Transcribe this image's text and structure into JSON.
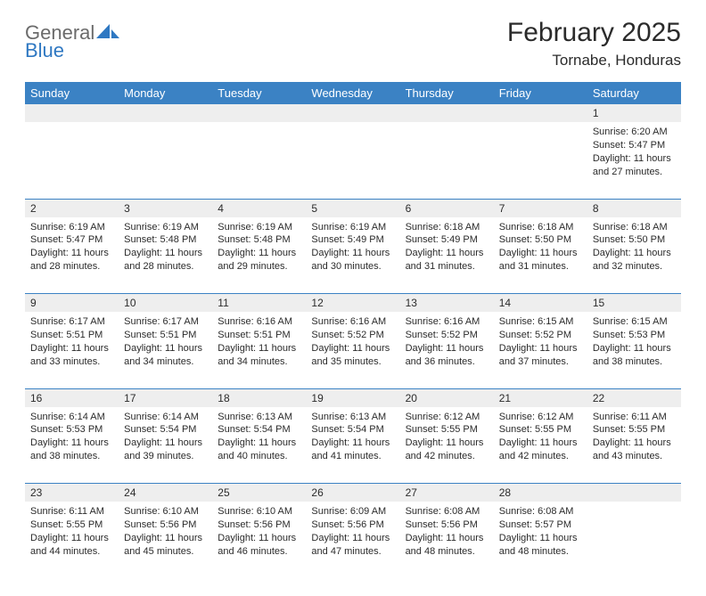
{
  "logo": {
    "general": "General",
    "blue": "Blue"
  },
  "title": "February 2025",
  "location": "Tornabe, Honduras",
  "colors": {
    "header_bg": "#3b82c4",
    "header_text": "#ffffff",
    "daynum_bg": "#eeeeee",
    "border": "#3b82c4",
    "text": "#2b2b2b",
    "logo_gray": "#6b6b6b",
    "logo_blue": "#2f78c2",
    "page_bg": "#ffffff"
  },
  "fonts": {
    "title_size": 30,
    "location_size": 17,
    "weekday_size": 13,
    "daynum_size": 12,
    "body_size": 11
  },
  "weekdays": [
    "Sunday",
    "Monday",
    "Tuesday",
    "Wednesday",
    "Thursday",
    "Friday",
    "Saturday"
  ],
  "weeks": [
    [
      {
        "n": "",
        "lines": []
      },
      {
        "n": "",
        "lines": []
      },
      {
        "n": "",
        "lines": []
      },
      {
        "n": "",
        "lines": []
      },
      {
        "n": "",
        "lines": []
      },
      {
        "n": "",
        "lines": []
      },
      {
        "n": "1",
        "lines": [
          "Sunrise: 6:20 AM",
          "Sunset: 5:47 PM",
          "Daylight: 11 hours",
          "and 27 minutes."
        ]
      }
    ],
    [
      {
        "n": "2",
        "lines": [
          "Sunrise: 6:19 AM",
          "Sunset: 5:47 PM",
          "Daylight: 11 hours",
          "and 28 minutes."
        ]
      },
      {
        "n": "3",
        "lines": [
          "Sunrise: 6:19 AM",
          "Sunset: 5:48 PM",
          "Daylight: 11 hours",
          "and 28 minutes."
        ]
      },
      {
        "n": "4",
        "lines": [
          "Sunrise: 6:19 AM",
          "Sunset: 5:48 PM",
          "Daylight: 11 hours",
          "and 29 minutes."
        ]
      },
      {
        "n": "5",
        "lines": [
          "Sunrise: 6:19 AM",
          "Sunset: 5:49 PM",
          "Daylight: 11 hours",
          "and 30 minutes."
        ]
      },
      {
        "n": "6",
        "lines": [
          "Sunrise: 6:18 AM",
          "Sunset: 5:49 PM",
          "Daylight: 11 hours",
          "and 31 minutes."
        ]
      },
      {
        "n": "7",
        "lines": [
          "Sunrise: 6:18 AM",
          "Sunset: 5:50 PM",
          "Daylight: 11 hours",
          "and 31 minutes."
        ]
      },
      {
        "n": "8",
        "lines": [
          "Sunrise: 6:18 AM",
          "Sunset: 5:50 PM",
          "Daylight: 11 hours",
          "and 32 minutes."
        ]
      }
    ],
    [
      {
        "n": "9",
        "lines": [
          "Sunrise: 6:17 AM",
          "Sunset: 5:51 PM",
          "Daylight: 11 hours",
          "and 33 minutes."
        ]
      },
      {
        "n": "10",
        "lines": [
          "Sunrise: 6:17 AM",
          "Sunset: 5:51 PM",
          "Daylight: 11 hours",
          "and 34 minutes."
        ]
      },
      {
        "n": "11",
        "lines": [
          "Sunrise: 6:16 AM",
          "Sunset: 5:51 PM",
          "Daylight: 11 hours",
          "and 34 minutes."
        ]
      },
      {
        "n": "12",
        "lines": [
          "Sunrise: 6:16 AM",
          "Sunset: 5:52 PM",
          "Daylight: 11 hours",
          "and 35 minutes."
        ]
      },
      {
        "n": "13",
        "lines": [
          "Sunrise: 6:16 AM",
          "Sunset: 5:52 PM",
          "Daylight: 11 hours",
          "and 36 minutes."
        ]
      },
      {
        "n": "14",
        "lines": [
          "Sunrise: 6:15 AM",
          "Sunset: 5:52 PM",
          "Daylight: 11 hours",
          "and 37 minutes."
        ]
      },
      {
        "n": "15",
        "lines": [
          "Sunrise: 6:15 AM",
          "Sunset: 5:53 PM",
          "Daylight: 11 hours",
          "and 38 minutes."
        ]
      }
    ],
    [
      {
        "n": "16",
        "lines": [
          "Sunrise: 6:14 AM",
          "Sunset: 5:53 PM",
          "Daylight: 11 hours",
          "and 38 minutes."
        ]
      },
      {
        "n": "17",
        "lines": [
          "Sunrise: 6:14 AM",
          "Sunset: 5:54 PM",
          "Daylight: 11 hours",
          "and 39 minutes."
        ]
      },
      {
        "n": "18",
        "lines": [
          "Sunrise: 6:13 AM",
          "Sunset: 5:54 PM",
          "Daylight: 11 hours",
          "and 40 minutes."
        ]
      },
      {
        "n": "19",
        "lines": [
          "Sunrise: 6:13 AM",
          "Sunset: 5:54 PM",
          "Daylight: 11 hours",
          "and 41 minutes."
        ]
      },
      {
        "n": "20",
        "lines": [
          "Sunrise: 6:12 AM",
          "Sunset: 5:55 PM",
          "Daylight: 11 hours",
          "and 42 minutes."
        ]
      },
      {
        "n": "21",
        "lines": [
          "Sunrise: 6:12 AM",
          "Sunset: 5:55 PM",
          "Daylight: 11 hours",
          "and 42 minutes."
        ]
      },
      {
        "n": "22",
        "lines": [
          "Sunrise: 6:11 AM",
          "Sunset: 5:55 PM",
          "Daylight: 11 hours",
          "and 43 minutes."
        ]
      }
    ],
    [
      {
        "n": "23",
        "lines": [
          "Sunrise: 6:11 AM",
          "Sunset: 5:55 PM",
          "Daylight: 11 hours",
          "and 44 minutes."
        ]
      },
      {
        "n": "24",
        "lines": [
          "Sunrise: 6:10 AM",
          "Sunset: 5:56 PM",
          "Daylight: 11 hours",
          "and 45 minutes."
        ]
      },
      {
        "n": "25",
        "lines": [
          "Sunrise: 6:10 AM",
          "Sunset: 5:56 PM",
          "Daylight: 11 hours",
          "and 46 minutes."
        ]
      },
      {
        "n": "26",
        "lines": [
          "Sunrise: 6:09 AM",
          "Sunset: 5:56 PM",
          "Daylight: 11 hours",
          "and 47 minutes."
        ]
      },
      {
        "n": "27",
        "lines": [
          "Sunrise: 6:08 AM",
          "Sunset: 5:56 PM",
          "Daylight: 11 hours",
          "and 48 minutes."
        ]
      },
      {
        "n": "28",
        "lines": [
          "Sunrise: 6:08 AM",
          "Sunset: 5:57 PM",
          "Daylight: 11 hours",
          "and 48 minutes."
        ]
      },
      {
        "n": "",
        "lines": []
      }
    ]
  ]
}
